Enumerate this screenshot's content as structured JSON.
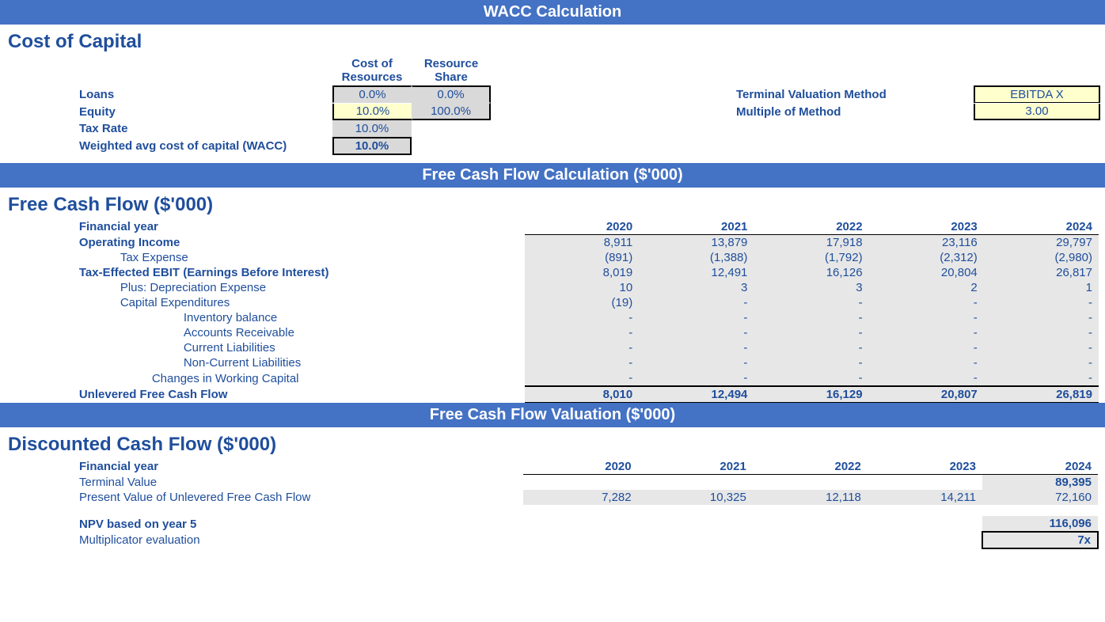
{
  "colors": {
    "banner_bg": "#4472c4",
    "banner_fg": "#ffffff",
    "text": "#1f4e9c",
    "grey_cell": "#d9d9d9",
    "row_grey": "#e7e7e7",
    "yellow_cell": "#feffcc",
    "border": "#000000"
  },
  "banners": {
    "wacc": "WACC Calculation",
    "fcf": "Free Cash Flow Calculation ($'000)",
    "val": "Free Cash Flow Valuation ($'000)"
  },
  "sections": {
    "cost_of_capital": "Cost of Capital",
    "fcf": "Free Cash Flow ($'000)",
    "dcf": "Discounted Cash Flow ($'000)"
  },
  "wacc": {
    "header_cost_of_resources": "Cost of\nResources",
    "header_resource_share": "Resource\nShare",
    "rows": {
      "loans": {
        "label": "Loans",
        "cost": "0.0%",
        "share": "0.0%"
      },
      "equity": {
        "label": "Equity",
        "cost": "10.0%",
        "share": "100.0%"
      },
      "tax_rate": {
        "label": "Tax Rate",
        "value": "10.0%"
      },
      "wacc": {
        "label": "Weighted avg cost of capital (WACC)",
        "value": "10.0%"
      }
    },
    "terminal": {
      "method_label": "Terminal Valuation Method",
      "method_value": "EBITDA X",
      "multiple_label": "Multiple of Method",
      "multiple_value": "3.00"
    }
  },
  "fcf": {
    "header_label": "Financial year",
    "years": [
      "2020",
      "2021",
      "2022",
      "2023",
      "2024"
    ],
    "rows": [
      {
        "key": "oi",
        "label": "Operating Income",
        "bold": true,
        "indent": 0,
        "values": [
          "8,911",
          "13,879",
          "17,918",
          "23,116",
          "29,797"
        ]
      },
      {
        "key": "tax",
        "label": "Tax Expense",
        "bold": false,
        "indent": 1,
        "values": [
          "(891)",
          "(1,388)",
          "(1,792)",
          "(2,312)",
          "(2,980)"
        ]
      },
      {
        "key": "ebit",
        "label": "Tax-Effected EBIT (Earnings Before Interest)",
        "bold": true,
        "indent": 0,
        "values": [
          "8,019",
          "12,491",
          "16,126",
          "20,804",
          "26,817"
        ]
      },
      {
        "key": "dep",
        "label": "Plus: Depreciation Expense",
        "bold": false,
        "indent": 1,
        "values": [
          "10",
          "3",
          "3",
          "2",
          "1"
        ]
      },
      {
        "key": "capex",
        "label": "Capital Expenditures",
        "bold": false,
        "indent": 1,
        "values": [
          "(19)",
          "-",
          "-",
          "-",
          "-"
        ]
      },
      {
        "key": "inv",
        "label": "Inventory balance",
        "bold": false,
        "indent": 3,
        "values": [
          "-",
          "-",
          "-",
          "-",
          "-"
        ]
      },
      {
        "key": "ar",
        "label": "Accounts Receivable",
        "bold": false,
        "indent": 3,
        "values": [
          "-",
          "-",
          "-",
          "-",
          "-"
        ]
      },
      {
        "key": "cl",
        "label": "Current Liabilities",
        "bold": false,
        "indent": 3,
        "values": [
          "-",
          "-",
          "-",
          "-",
          "-"
        ]
      },
      {
        "key": "ncl",
        "label": "Non-Current Liabilities",
        "bold": false,
        "indent": 3,
        "values": [
          "-",
          "-",
          "-",
          "-",
          "-"
        ]
      },
      {
        "key": "cwc",
        "label": "Changes in Working Capital",
        "bold": false,
        "indent": 2,
        "values": [
          "-",
          "-",
          "-",
          "-",
          "-"
        ]
      }
    ],
    "ufcf": {
      "label": "Unlevered Free Cash Flow",
      "values": [
        "8,010",
        "12,494",
        "16,129",
        "20,807",
        "26,819"
      ]
    }
  },
  "dcf": {
    "header_label": "Financial year",
    "years": [
      "2020",
      "2021",
      "2022",
      "2023",
      "2024"
    ],
    "terminal_value": {
      "label": "Terminal Value",
      "values": [
        "",
        "",
        "",
        "",
        ""
      ],
      "last": "89,395"
    },
    "pv": {
      "label": "Present Value of Unlevered Free Cash Flow",
      "values": [
        "7,282",
        "10,325",
        "12,118",
        "14,211",
        "72,160"
      ]
    },
    "npv": {
      "label": "NPV based on year 5",
      "value": "116,096"
    },
    "multi": {
      "label": "Multiplicator evaluation",
      "value": "7x"
    }
  }
}
